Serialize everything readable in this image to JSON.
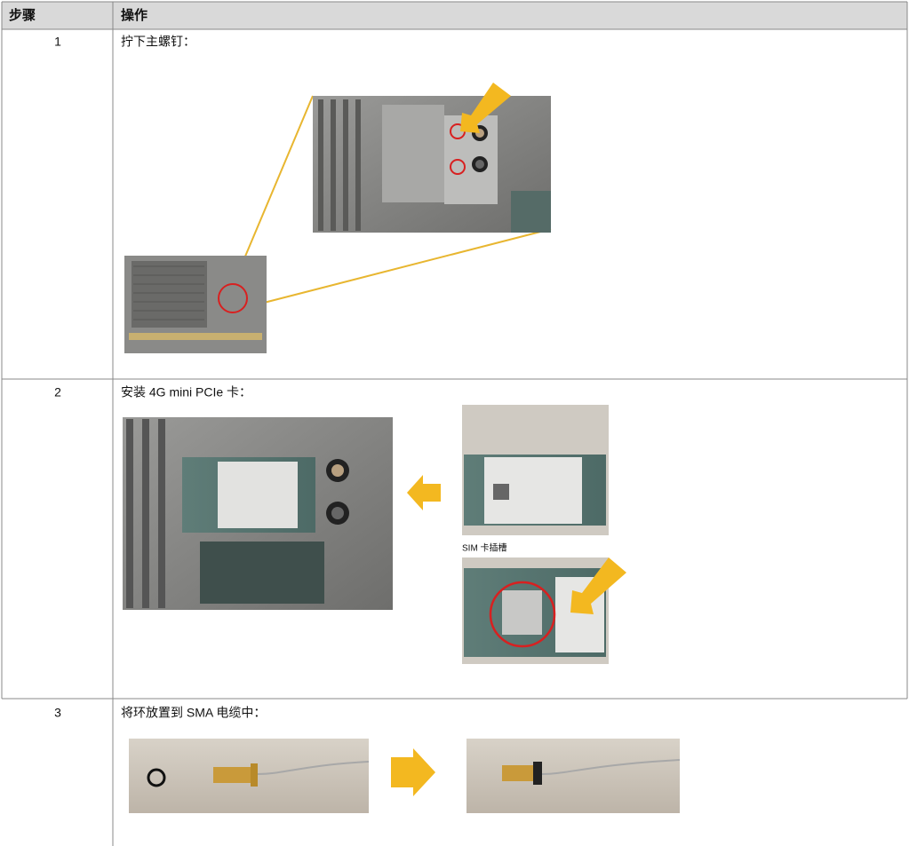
{
  "table": {
    "header": [
      "步骤",
      "操作"
    ],
    "rows": [
      [
        "1",
        "拧下主螺钉："
      ],
      [
        "2",
        "安装 4G mini PCIe 卡："
      ],
      [
        "3",
        "将环放置到 SMA 电缆中："
      ]
    ]
  },
  "figure_labels": [
    "SIM 卡插槽"
  ]
}
